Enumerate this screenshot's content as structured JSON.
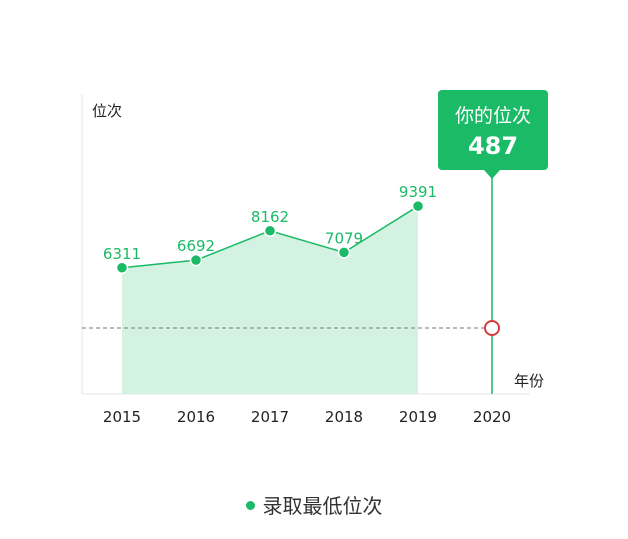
{
  "chart_data": {
    "type": "area",
    "ylabel": "位次",
    "xlabel": "年份",
    "categories": [
      "2015",
      "2016",
      "2017",
      "2018",
      "2019",
      "2020"
    ],
    "series": [
      {
        "name": "录取最低位次",
        "values": [
          6311,
          6692,
          8162,
          7079,
          9391,
          null
        ],
        "color": "#1aba66",
        "fill": "#d3f2e1"
      }
    ],
    "ylim": [
      0,
      15000
    ],
    "grid": false,
    "legend": "bottom-center",
    "marker": {
      "category": "2020",
      "title": "你的位次",
      "value": 487,
      "reference_value": 3300,
      "reference_line": "dashed",
      "point_color": "#d63b3b"
    }
  }
}
